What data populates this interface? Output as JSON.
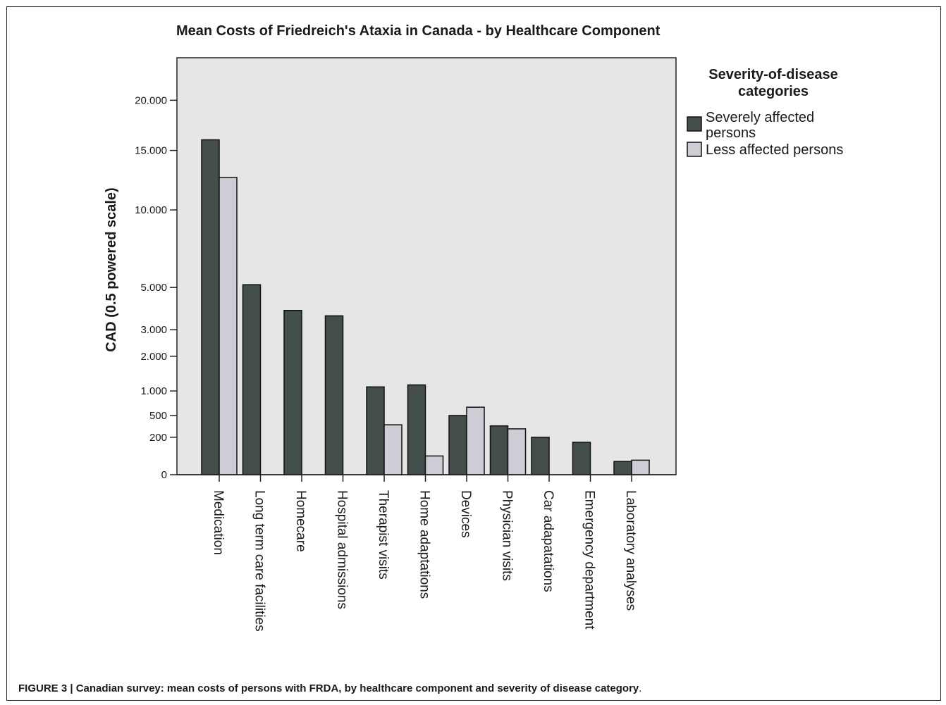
{
  "chart_data": {
    "type": "bar",
    "title": "Mean Costs of Friedreich's Ataxia in Canada - by Healthcare Component",
    "ylabel": "CAD (0.5 powered scale)",
    "xlabel": "",
    "scale": "power 0.5",
    "y_ticks": [
      {
        "value": 0,
        "label": "0"
      },
      {
        "value": 200,
        "label": "200"
      },
      {
        "value": 500,
        "label": "500"
      },
      {
        "value": 1000,
        "label": "1.000"
      },
      {
        "value": 2000,
        "label": "2.000"
      },
      {
        "value": 3000,
        "label": "3.000"
      },
      {
        "value": 5000,
        "label": "5.000"
      },
      {
        "value": 10000,
        "label": "10.000"
      },
      {
        "value": 15000,
        "label": "15.000"
      },
      {
        "value": 20000,
        "label": "20.000"
      }
    ],
    "ylim": [
      0,
      24800
    ],
    "categories": [
      "Medication",
      "Long term care facilities",
      "Homecare",
      "Hospital admissions",
      "Therapist visits",
      "Home adaptations",
      "Devices",
      "Physician visits",
      "Car adapatations",
      "Emergency department",
      "Laboratory analyses"
    ],
    "series": [
      {
        "name": "Severely affected persons",
        "color": "#434d4b",
        "values": [
          16000,
          5150,
          3850,
          3600,
          1100,
          1150,
          500,
          340,
          200,
          150,
          25
        ]
      },
      {
        "name": "Less affected persons",
        "color": "#cdcdd6",
        "values": [
          12600,
          0,
          0,
          0,
          355,
          50,
          650,
          300,
          0,
          0,
          30
        ]
      }
    ],
    "legend": {
      "title": "Severity-of-disease categories",
      "position": "right"
    },
    "grid": false,
    "plot_background": "#e6e6e6"
  },
  "caption": {
    "text": "FIGURE 3 | Canadian survey: mean costs of persons with FRDA, by healthcare component and severity of disease category",
    "tail": "."
  }
}
